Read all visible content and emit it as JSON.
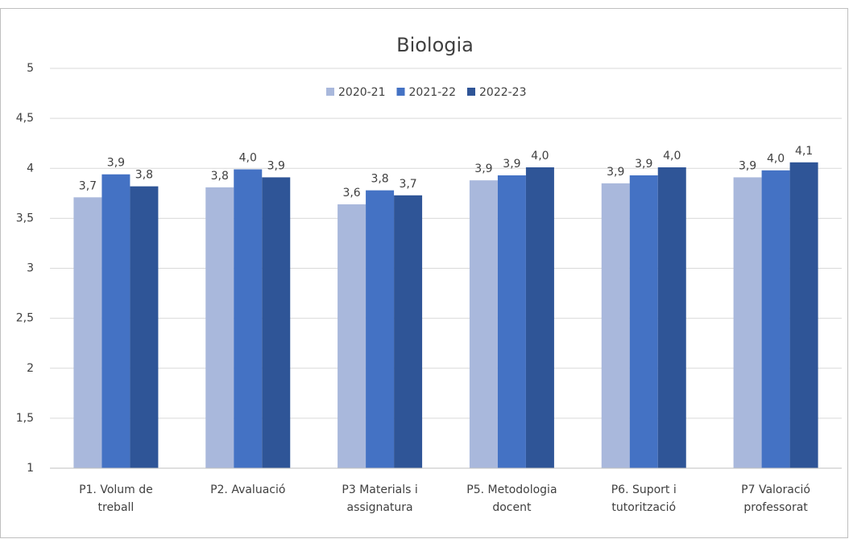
{
  "chart_data": {
    "type": "bar",
    "title": "Biologia",
    "categories": [
      "P1. Volum de treball",
      "P2. Avaluació",
      "P3 Materials i assignatura",
      "P5. Metodologia docent",
      "P6. Suport i tutorització",
      "P7 Valoració professorat"
    ],
    "series": [
      {
        "name": "2020-21",
        "color": "#a9b8dc",
        "values": [
          3.71,
          3.81,
          3.64,
          3.88,
          3.85,
          3.91
        ],
        "value_labels": [
          "3,7",
          "3,8",
          "3,6",
          "3,9",
          "3,9",
          "3,9"
        ]
      },
      {
        "name": "2021-22",
        "color": "#4472c4",
        "values": [
          3.94,
          3.99,
          3.78,
          3.93,
          3.93,
          3.98
        ],
        "value_labels": [
          "3,9",
          "4,0",
          "3,8",
          "3,9",
          "3,9",
          "4,0"
        ]
      },
      {
        "name": "2022-23",
        "color": "#2f5597",
        "values": [
          3.82,
          3.91,
          3.73,
          4.01,
          4.01,
          4.06
        ],
        "value_labels": [
          "3,8",
          "3,9",
          "3,7",
          "4,0",
          "4,0",
          "4,1"
        ]
      }
    ],
    "ylim": [
      1,
      5
    ],
    "yticks": [
      1,
      {
        "value": 1.5,
        "label": "1,5"
      },
      2,
      {
        "value": 2.5,
        "label": "2,5"
      },
      3,
      {
        "value": 3.5,
        "label": "3,5"
      },
      4,
      {
        "value": 4.5,
        "label": "4,5"
      },
      5
    ],
    "grid": true,
    "legend": "top"
  }
}
